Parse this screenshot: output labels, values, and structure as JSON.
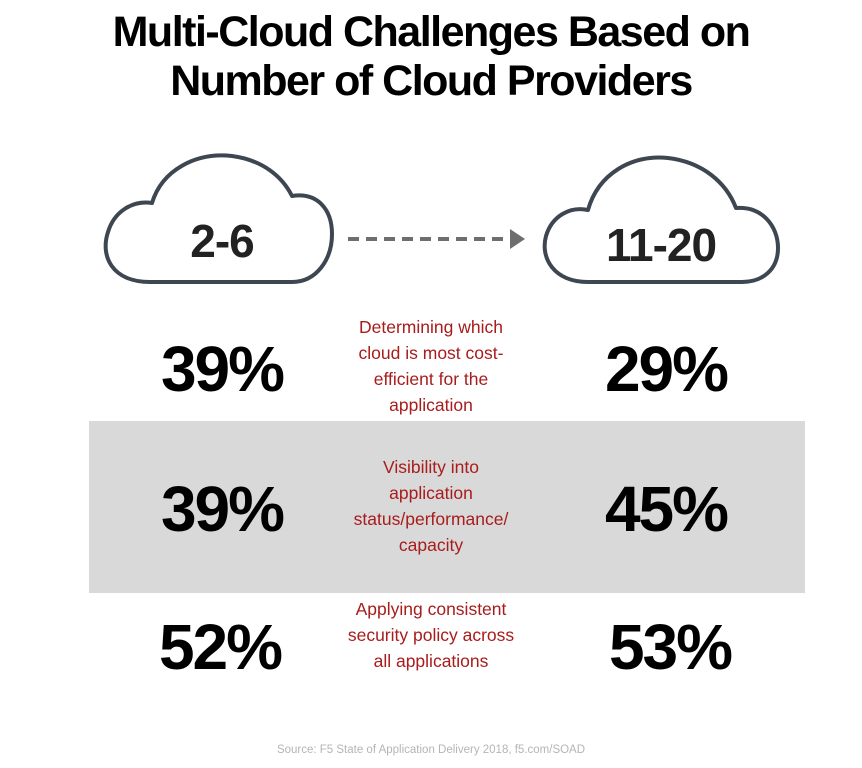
{
  "chart_data": {
    "type": "table",
    "title_lines": [
      "Multi-Cloud Challenges Based on",
      "Number of Cloud Providers"
    ],
    "columns": [
      "2-6",
      "11-20"
    ],
    "rows": [
      {
        "challenge": "Determining which cloud is most cost-efficient for the application",
        "challenge_lines": [
          "Determining which",
          "cloud is most cost-",
          "efficient for the",
          "application"
        ],
        "values_display": [
          "39%",
          "29%"
        ],
        "values": [
          39,
          29
        ]
      },
      {
        "challenge": "Visibility into application status/performance/ capacity",
        "challenge_lines": [
          "Visibility into",
          "application",
          "status/performance/",
          "capacity"
        ],
        "values_display": [
          "39%",
          "45%"
        ],
        "values": [
          39,
          45
        ]
      },
      {
        "challenge": "Applying consistent security policy across all applications",
        "challenge_lines": [
          "Applying consistent",
          "security policy across",
          "all applications"
        ],
        "values_display": [
          "52%",
          "53%"
        ],
        "values": [
          52,
          53
        ]
      }
    ],
    "unit": "%",
    "highlighted_row": 1,
    "colors": {
      "cloud_outline": "#3d4651",
      "arrow": "#6e6e6e",
      "challenge_text": "#a81c1c",
      "band": "#d9d9d9",
      "source_text": "#b5b5b5"
    }
  },
  "source": "Source: F5 State of Application Delivery 2018, f5.com/SOAD"
}
